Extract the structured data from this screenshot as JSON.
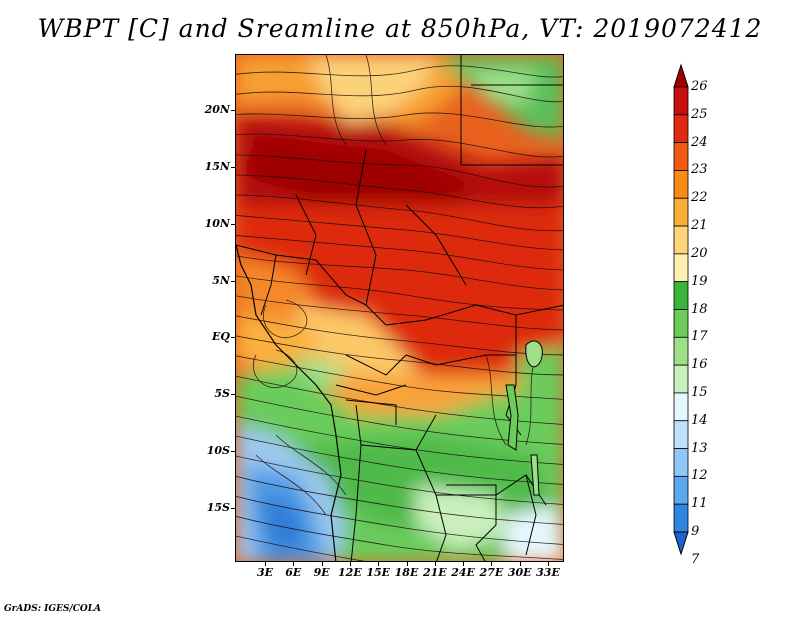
{
  "title": "WBPT [C] and Sreamline at 850hPa, VT: 2019072412",
  "footer": "GrADS: IGES/COLA",
  "lat_labels": [
    "20N",
    "15N",
    "10N",
    "5N",
    "EQ",
    "5S",
    "10S",
    "15S"
  ],
  "lon_labels": [
    "3E",
    "6E",
    "9E",
    "12E",
    "15E",
    "18E",
    "21E",
    "24E",
    "27E",
    "30E",
    "33E"
  ],
  "colorbar": {
    "labels": [
      "26",
      "25",
      "24",
      "23",
      "22",
      "21",
      "20",
      "19",
      "18",
      "17",
      "16",
      "15",
      "14",
      "13",
      "12",
      "11",
      "9",
      "7"
    ],
    "colors": [
      "#a50000",
      "#c80f0f",
      "#e02a10",
      "#f05a14",
      "#f98a14",
      "#fbae36",
      "#fdd57a",
      "#fef0b0",
      "#3cb43c",
      "#6bcc5c",
      "#9ee08a",
      "#c9f0bd",
      "#e6f7ff",
      "#bfe1fb",
      "#90c7f4",
      "#5ba8ec",
      "#2f86e0",
      "#1a63d0"
    ]
  }
}
